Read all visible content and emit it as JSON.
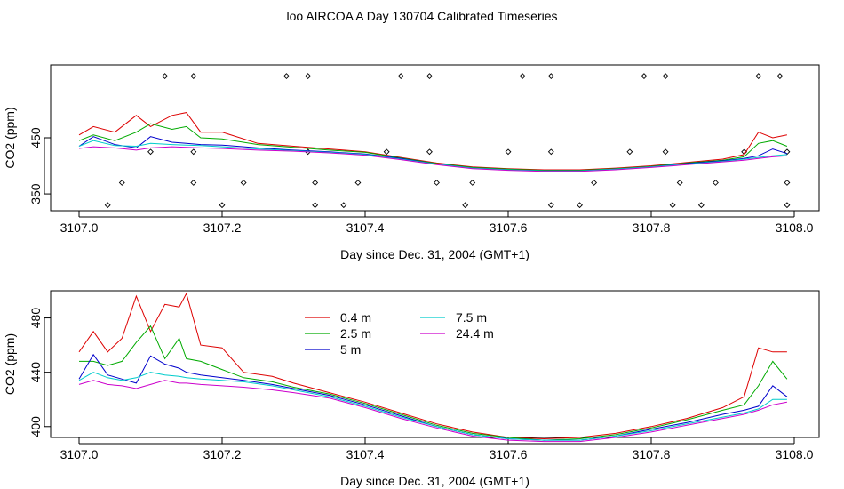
{
  "title": "loo AIRCOA A  Day 130704  Calibrated Timeseries",
  "chart_data": [
    {
      "type": "line",
      "xlabel": "Day since Dec. 31, 2004 (GMT+1)",
      "ylabel": "CO2 (ppm)",
      "xlim": [
        3107.0,
        3108.0
      ],
      "ylim": [
        320,
        580
      ],
      "xticks": [
        "3107.0",
        "3107.2",
        "3107.4",
        "3107.6",
        "3107.8",
        "3108.0"
      ],
      "yticks": [
        "350",
        "450"
      ],
      "colors": [
        "#dd0000",
        "#00aa00",
        "#0000cc",
        "#00cccc",
        "#cc00cc"
      ],
      "series": [
        {
          "name": "0.4 m",
          "x": [
            3107.0,
            3107.02,
            3107.05,
            3107.08,
            3107.1,
            3107.13,
            3107.15,
            3107.17,
            3107.2,
            3107.25,
            3107.3,
            3107.35,
            3107.4,
            3107.45,
            3107.5,
            3107.55,
            3107.6,
            3107.65,
            3107.7,
            3107.75,
            3107.8,
            3107.85,
            3107.9,
            3107.93,
            3107.95,
            3107.97,
            3107.99
          ],
          "y": [
            455,
            470,
            460,
            490,
            470,
            490,
            495,
            460,
            460,
            440,
            435,
            430,
            425,
            415,
            405,
            398,
            395,
            393,
            393,
            396,
            400,
            406,
            412,
            420,
            460,
            450,
            455
          ]
        },
        {
          "name": "2.5 m",
          "x": [
            3107.0,
            3107.02,
            3107.05,
            3107.08,
            3107.1,
            3107.13,
            3107.15,
            3107.17,
            3107.2,
            3107.25,
            3107.3,
            3107.35,
            3107.4,
            3107.45,
            3107.5,
            3107.55,
            3107.6,
            3107.65,
            3107.7,
            3107.75,
            3107.8,
            3107.85,
            3107.9,
            3107.93,
            3107.95,
            3107.97,
            3107.99
          ],
          "y": [
            445,
            455,
            445,
            460,
            475,
            465,
            470,
            450,
            448,
            438,
            433,
            428,
            424,
            414,
            404,
            397,
            394,
            392,
            392,
            395,
            399,
            405,
            410,
            416,
            440,
            445,
            435
          ]
        },
        {
          "name": "5 m",
          "x": [
            3107.0,
            3107.02,
            3107.05,
            3107.08,
            3107.1,
            3107.13,
            3107.15,
            3107.17,
            3107.2,
            3107.25,
            3107.3,
            3107.35,
            3107.4,
            3107.45,
            3107.5,
            3107.55,
            3107.6,
            3107.65,
            3107.7,
            3107.75,
            3107.8,
            3107.85,
            3107.9,
            3107.93,
            3107.95,
            3107.97,
            3107.99
          ],
          "y": [
            435,
            452,
            438,
            432,
            452,
            442,
            440,
            438,
            437,
            432,
            428,
            425,
            421,
            413,
            403,
            396,
            393,
            391,
            391,
            394,
            398,
            404,
            409,
            413,
            418,
            430,
            422
          ]
        },
        {
          "name": "7.5 m",
          "x": [
            3107.0,
            3107.02,
            3107.05,
            3107.08,
            3107.1,
            3107.13,
            3107.15,
            3107.17,
            3107.2,
            3107.25,
            3107.3,
            3107.35,
            3107.4,
            3107.45,
            3107.5,
            3107.55,
            3107.6,
            3107.65,
            3107.7,
            3107.75,
            3107.8,
            3107.85,
            3107.9,
            3107.93,
            3107.95,
            3107.97,
            3107.99
          ],
          "y": [
            435,
            445,
            436,
            435,
            440,
            438,
            437,
            436,
            434,
            430,
            427,
            424,
            420,
            412,
            403,
            396,
            393,
            391,
            391,
            394,
            398,
            403,
            408,
            412,
            415,
            418,
            420
          ]
        },
        {
          "name": "24.4 m",
          "x": [
            3107.0,
            3107.02,
            3107.05,
            3107.08,
            3107.1,
            3107.13,
            3107.15,
            3107.17,
            3107.2,
            3107.25,
            3107.3,
            3107.35,
            3107.4,
            3107.45,
            3107.5,
            3107.55,
            3107.6,
            3107.65,
            3107.7,
            3107.75,
            3107.8,
            3107.85,
            3107.9,
            3107.93,
            3107.95,
            3107.97,
            3107.99
          ],
          "y": [
            431,
            434,
            432,
            428,
            432,
            434,
            433,
            432,
            431,
            428,
            426,
            423,
            419,
            411,
            402,
            395,
            392,
            390,
            390,
            393,
            397,
            402,
            407,
            410,
            413,
            416,
            418
          ]
        }
      ],
      "markers": {
        "x": [
          3107.04,
          3107.06,
          3107.1,
          3107.12,
          3107.16,
          3107.16,
          3107.16,
          3107.2,
          3107.23,
          3107.29,
          3107.32,
          3107.32,
          3107.33,
          3107.33,
          3107.37,
          3107.39,
          3107.43,
          3107.45,
          3107.49,
          3107.49,
          3107.5,
          3107.54,
          3107.55,
          3107.6,
          3107.62,
          3107.66,
          3107.66,
          3107.66,
          3107.7,
          3107.72,
          3107.77,
          3107.79,
          3107.82,
          3107.82,
          3107.83,
          3107.84,
          3107.87,
          3107.89,
          3107.93,
          3107.95,
          3107.98,
          3107.99,
          3107.99,
          3107.99
        ],
        "y": [
          330,
          370,
          425,
          560,
          560,
          425,
          370,
          330,
          370,
          560,
          560,
          425,
          370,
          330,
          330,
          370,
          425,
          560,
          560,
          425,
          370,
          330,
          370,
          425,
          560,
          560,
          425,
          330,
          330,
          370,
          425,
          560,
          560,
          425,
          330,
          370,
          330,
          370,
          425,
          560,
          560,
          425,
          370,
          330
        ]
      }
    },
    {
      "type": "line",
      "xlabel": "Day since Dec. 31, 2004 (GMT+1)",
      "ylabel": "CO2 (ppm)",
      "xlim": [
        3107.0,
        3108.0
      ],
      "ylim": [
        392,
        500
      ],
      "xticks": [
        "3107.0",
        "3107.2",
        "3107.4",
        "3107.6",
        "3107.8",
        "3108.0"
      ],
      "yticks": [
        "400",
        "440",
        "480"
      ],
      "legend": "top-left",
      "colors": [
        "#dd0000",
        "#00aa00",
        "#0000cc",
        "#00cccc",
        "#cc00cc"
      ],
      "series": [
        {
          "name": "0.4 m",
          "x": [
            3107.0,
            3107.02,
            3107.04,
            3107.06,
            3107.08,
            3107.1,
            3107.12,
            3107.14,
            3107.15,
            3107.17,
            3107.2,
            3107.23,
            3107.27,
            3107.3,
            3107.35,
            3107.4,
            3107.45,
            3107.5,
            3107.55,
            3107.6,
            3107.65,
            3107.7,
            3107.75,
            3107.8,
            3107.85,
            3107.9,
            3107.93,
            3107.95,
            3107.97,
            3107.99
          ],
          "y": [
            455,
            470,
            455,
            465,
            496,
            470,
            490,
            488,
            498,
            460,
            458,
            440,
            437,
            432,
            425,
            418,
            410,
            402,
            396,
            392,
            391,
            392,
            395,
            400,
            406,
            414,
            422,
            458,
            455,
            455
          ]
        },
        {
          "name": "2.5 m",
          "x": [
            3107.0,
            3107.02,
            3107.04,
            3107.06,
            3107.08,
            3107.1,
            3107.12,
            3107.14,
            3107.15,
            3107.17,
            3107.2,
            3107.23,
            3107.27,
            3107.3,
            3107.35,
            3107.4,
            3107.45,
            3107.5,
            3107.55,
            3107.6,
            3107.65,
            3107.7,
            3107.75,
            3107.8,
            3107.85,
            3107.9,
            3107.93,
            3107.95,
            3107.97,
            3107.99
          ],
          "y": [
            448,
            448,
            445,
            448,
            462,
            474,
            450,
            465,
            450,
            448,
            442,
            436,
            433,
            429,
            424,
            417,
            409,
            401,
            395,
            392,
            390,
            391,
            394,
            399,
            405,
            412,
            416,
            430,
            448,
            435
          ]
        },
        {
          "name": "5 m",
          "x": [
            3107.0,
            3107.02,
            3107.04,
            3107.06,
            3107.08,
            3107.1,
            3107.12,
            3107.14,
            3107.15,
            3107.17,
            3107.2,
            3107.23,
            3107.27,
            3107.3,
            3107.35,
            3107.4,
            3107.45,
            3107.5,
            3107.55,
            3107.6,
            3107.65,
            3107.7,
            3107.75,
            3107.8,
            3107.85,
            3107.9,
            3107.93,
            3107.95,
            3107.97,
            3107.99
          ],
          "y": [
            435,
            453,
            438,
            435,
            432,
            452,
            446,
            443,
            440,
            438,
            436,
            434,
            431,
            428,
            423,
            416,
            408,
            400,
            394,
            391,
            390,
            390,
            393,
            398,
            403,
            409,
            412,
            415,
            430,
            422
          ]
        },
        {
          "name": "7.5 m",
          "x": [
            3107.0,
            3107.02,
            3107.04,
            3107.06,
            3107.08,
            3107.1,
            3107.12,
            3107.14,
            3107.15,
            3107.17,
            3107.2,
            3107.23,
            3107.27,
            3107.3,
            3107.35,
            3107.4,
            3107.45,
            3107.5,
            3107.55,
            3107.6,
            3107.65,
            3107.7,
            3107.75,
            3107.8,
            3107.85,
            3107.9,
            3107.93,
            3107.95,
            3107.97,
            3107.99
          ],
          "y": [
            434,
            440,
            436,
            434,
            436,
            440,
            438,
            437,
            436,
            435,
            434,
            433,
            430,
            427,
            422,
            415,
            407,
            400,
            394,
            391,
            390,
            390,
            393,
            397,
            402,
            407,
            410,
            413,
            420,
            420
          ]
        },
        {
          "name": "24.4 m",
          "x": [
            3107.0,
            3107.02,
            3107.04,
            3107.06,
            3107.08,
            3107.1,
            3107.12,
            3107.14,
            3107.15,
            3107.17,
            3107.2,
            3107.23,
            3107.27,
            3107.3,
            3107.35,
            3107.4,
            3107.45,
            3107.5,
            3107.55,
            3107.6,
            3107.65,
            3107.7,
            3107.75,
            3107.8,
            3107.85,
            3107.9,
            3107.93,
            3107.95,
            3107.97,
            3107.99
          ],
          "y": [
            431,
            434,
            431,
            430,
            428,
            431,
            434,
            432,
            432,
            431,
            430,
            429,
            427,
            425,
            421,
            414,
            406,
            399,
            393,
            390,
            389,
            389,
            392,
            396,
            401,
            406,
            409,
            412,
            416,
            418
          ]
        }
      ]
    }
  ]
}
